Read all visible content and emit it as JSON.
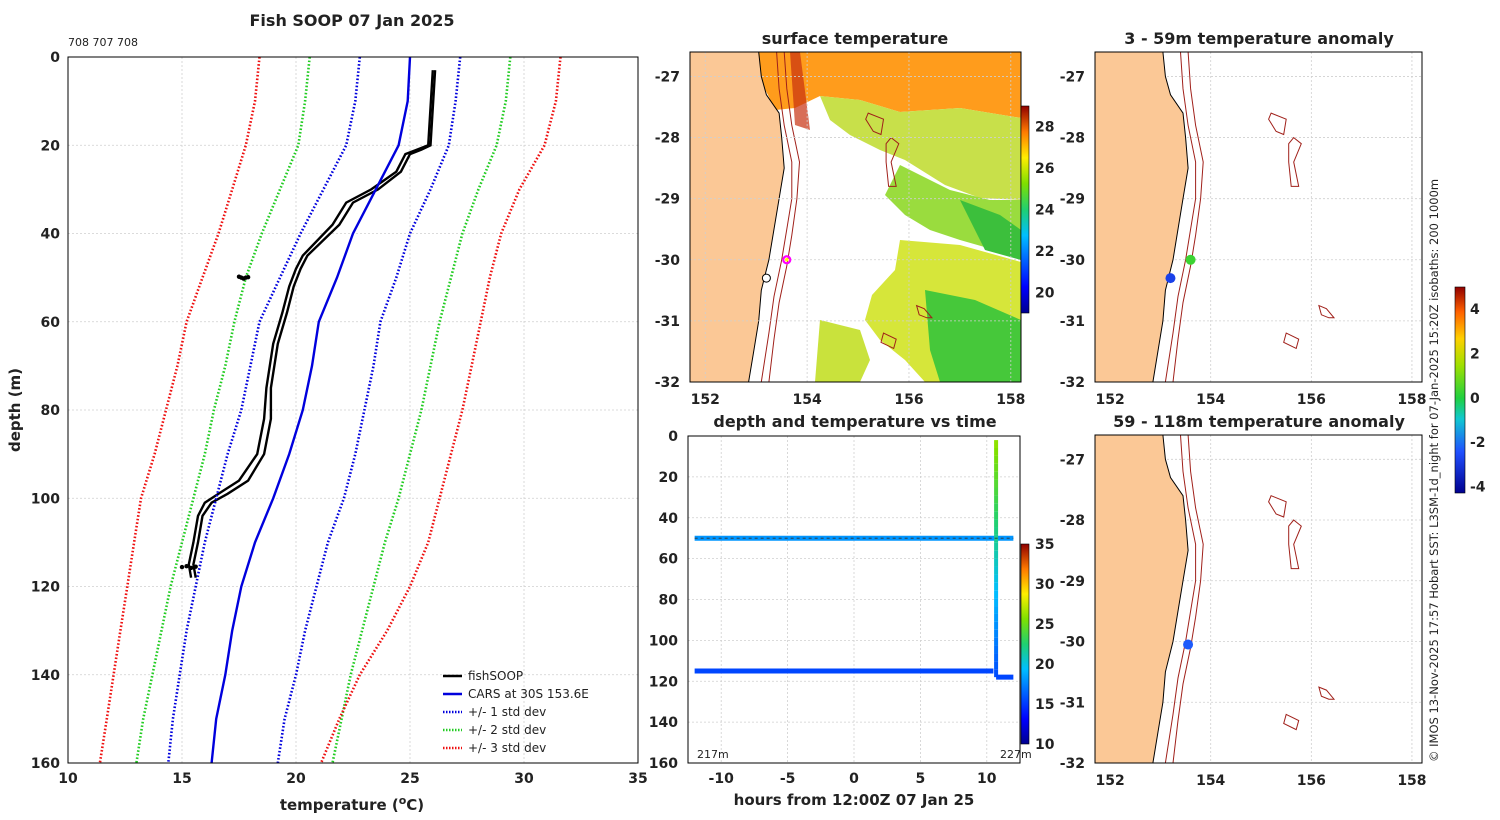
{
  "figure_title": "Fish SOOP 07 Jan 2025",
  "sensor_ids": "708 707 708",
  "side_note": "© IMOS 13-Nov-2025 17:57 Hobart SST: L3SM-1d_night for 07-Jan-2025 15:20Z isobaths: 200  1000m",
  "chart_data": [
    {
      "id": "profile",
      "type": "line",
      "title": "Fish SOOP 07 Jan 2025",
      "xlabel": "temperature (°C)",
      "ylabel": "depth (m)",
      "xlim": [
        10,
        35
      ],
      "ylim": [
        0,
        160
      ],
      "y_reversed": true,
      "grid": true,
      "xticks": [
        10,
        15,
        20,
        25,
        30,
        35
      ],
      "yticks": [
        0,
        20,
        40,
        60,
        80,
        100,
        120,
        140,
        160
      ],
      "legend_position": "bottom-right",
      "legend": [
        "fishSOOP",
        "CARS at 30S 153.6E",
        "+/- 1 std dev",
        "+/- 2 std dev",
        "+/- 3 std dev"
      ],
      "series": [
        {
          "name": "fishSOOP",
          "style": "solid",
          "color": "#000000",
          "depth": [
            3,
            20,
            21,
            22,
            26,
            30,
            33,
            38,
            45,
            48,
            52,
            58,
            65,
            75,
            82,
            90,
            96,
            99,
            101,
            104,
            110,
            115,
            118
          ],
          "temp": [
            26.1,
            25.9,
            25.5,
            25.0,
            24.6,
            23.6,
            22.5,
            21.9,
            20.5,
            20.2,
            19.9,
            19.6,
            19.2,
            18.9,
            18.9,
            18.6,
            17.9,
            17.0,
            16.3,
            15.9,
            15.7,
            15.5,
            15.6
          ]
        },
        {
          "name": "fishSOOP",
          "style": "solid",
          "color": "#000000",
          "depth": [
            3,
            20,
            21,
            22,
            26,
            30,
            33,
            38,
            45,
            48,
            52,
            58,
            65,
            75,
            82,
            90,
            96,
            99,
            101,
            104,
            110,
            115,
            118
          ],
          "temp": [
            26.0,
            25.8,
            25.3,
            24.8,
            24.4,
            23.3,
            22.2,
            21.6,
            20.3,
            20.0,
            19.7,
            19.4,
            19.0,
            18.7,
            18.6,
            18.3,
            17.5,
            16.6,
            16.0,
            15.7,
            15.5,
            15.3,
            15.4
          ]
        },
        {
          "name": "CARS at 30S 153.6E",
          "style": "solid",
          "color": "#0000dd",
          "depth": [
            0,
            10,
            20,
            30,
            40,
            50,
            60,
            70,
            80,
            90,
            100,
            110,
            120,
            130,
            140,
            150,
            160
          ],
          "temp": [
            25.0,
            24.9,
            24.5,
            23.5,
            22.5,
            21.8,
            21.0,
            20.7,
            20.3,
            19.7,
            19.0,
            18.2,
            17.6,
            17.2,
            16.9,
            16.5,
            16.3
          ]
        },
        {
          "name": "+/- 1 std dev",
          "style": "dotted",
          "color": "#0000dd",
          "depth": [
            0,
            10,
            20,
            30,
            40,
            50,
            60,
            70,
            80,
            90,
            100,
            110,
            120,
            130,
            140,
            150,
            160
          ],
          "temp": [
            27.2,
            27.0,
            26.7,
            25.9,
            25.0,
            24.4,
            23.7,
            23.4,
            23.0,
            22.6,
            22.1,
            21.4,
            20.9,
            20.4,
            20.0,
            19.5,
            19.2
          ]
        },
        {
          "name": "+/- 1 std dev",
          "style": "dotted",
          "color": "#0000dd",
          "depth": [
            0,
            10,
            20,
            30,
            40,
            50,
            60,
            70,
            80,
            90,
            100,
            110,
            120,
            130,
            140,
            150,
            160
          ],
          "temp": [
            22.8,
            22.6,
            22.2,
            21.2,
            20.2,
            19.3,
            18.4,
            18.0,
            17.6,
            17.0,
            16.5,
            16.0,
            15.6,
            15.2,
            14.9,
            14.6,
            14.4
          ]
        },
        {
          "name": "+/- 2 std dev",
          "style": "dotted",
          "color": "#22cc22",
          "depth": [
            0,
            10,
            20,
            30,
            40,
            50,
            60,
            70,
            80,
            90,
            100,
            110,
            120,
            130,
            140,
            150,
            160
          ],
          "temp": [
            29.4,
            29.2,
            28.8,
            28.0,
            27.3,
            26.8,
            26.3,
            25.9,
            25.5,
            25.0,
            24.5,
            23.9,
            23.4,
            22.9,
            22.4,
            22.0,
            21.6
          ]
        },
        {
          "name": "+/- 2 std dev",
          "style": "dotted",
          "color": "#22cc22",
          "depth": [
            0,
            10,
            20,
            30,
            40,
            50,
            60,
            70,
            80,
            90,
            100,
            110,
            120,
            130,
            140,
            150,
            160
          ],
          "temp": [
            20.6,
            20.4,
            20.1,
            19.3,
            18.5,
            17.8,
            17.3,
            16.9,
            16.4,
            16.0,
            15.5,
            15.0,
            14.5,
            14.1,
            13.7,
            13.3,
            13.0
          ]
        },
        {
          "name": "+/- 3 std dev",
          "style": "dotted",
          "color": "#ee1111",
          "depth": [
            0,
            10,
            20,
            30,
            40,
            50,
            60,
            70,
            80,
            90,
            100,
            110,
            120,
            130,
            140,
            150,
            160
          ],
          "temp": [
            31.6,
            31.4,
            30.9,
            29.8,
            29.0,
            28.5,
            28.1,
            27.7,
            27.3,
            26.8,
            26.3,
            25.8,
            25.0,
            24.0,
            22.8,
            21.9,
            21.1
          ]
        },
        {
          "name": "+/- 3 std dev",
          "style": "dotted",
          "color": "#ee1111",
          "depth": [
            0,
            10,
            20,
            30,
            40,
            50,
            60,
            70,
            80,
            90,
            100,
            110,
            120,
            130,
            140,
            150,
            160
          ],
          "temp": [
            18.4,
            18.2,
            17.8,
            17.2,
            16.6,
            15.9,
            15.2,
            14.8,
            14.3,
            13.8,
            13.2,
            12.9,
            12.6,
            12.3,
            12.0,
            11.7,
            11.4
          ]
        },
        {
          "name": "fishSOOP",
          "style": "markers",
          "color": "#000000",
          "depth": [
            49.8,
            50.0,
            50.2,
            50.0,
            49.9,
            115.6,
            115.4,
            115.8,
            115.5
          ],
          "temp": [
            17.5,
            17.6,
            17.7,
            17.8,
            17.9,
            15.0,
            15.2,
            15.4,
            15.6
          ]
        }
      ]
    },
    {
      "id": "sst_map",
      "type": "heatmap",
      "title": "surface temperature",
      "xlim": [
        151.7,
        158.2
      ],
      "ylim": [
        -32,
        -26.6
      ],
      "xticks": [
        152,
        154,
        156,
        158
      ],
      "yticks": [
        -27,
        -28,
        -29,
        -30,
        -31,
        -32
      ],
      "colorbar": {
        "min": 19,
        "max": 29,
        "ticks": [
          20,
          22,
          24,
          26,
          28
        ]
      },
      "vessel_position": {
        "lon": 153.6,
        "lat": -30.0
      },
      "profile_position": {
        "lon": 153.2,
        "lat": -30.3
      },
      "grid": true
    },
    {
      "id": "time_series",
      "type": "scatter",
      "title": "depth and temperature vs time",
      "xlabel": "hours from 12:00Z 07 Jan 25",
      "xlim": [
        -12.5,
        12.5
      ],
      "ylim": [
        0,
        160
      ],
      "y_reversed": true,
      "xticks": [
        -10,
        -5,
        0,
        5,
        10
      ],
      "yticks": [
        0,
        20,
        40,
        60,
        80,
        100,
        120,
        140,
        160
      ],
      "colorbar": {
        "min": 10,
        "max": 35,
        "ticks": [
          10,
          15,
          20,
          25,
          30,
          35
        ]
      },
      "annotations": [
        "217m",
        "227m"
      ],
      "series": [
        {
          "name": "tow 50m",
          "hours": [
            -12,
            12
          ],
          "depth": [
            50,
            50
          ],
          "temp": 18
        },
        {
          "name": "tow 115m",
          "hours": [
            -12,
            10.5
          ],
          "depth": [
            115,
            115
          ],
          "temp": 15.4
        },
        {
          "name": "cast",
          "hours": [
            10.7,
            10.7
          ],
          "depth": [
            2,
            118
          ],
          "temp_top": 26,
          "temp_bottom": 15.4
        },
        {
          "name": "tail",
          "hours": [
            10.7,
            12
          ],
          "depth": [
            118,
            118
          ],
          "temp": 15.4
        }
      ]
    },
    {
      "id": "anomaly_shallow",
      "type": "heatmap",
      "title": "3 - 59m temperature anomaly",
      "xlim": [
        151.7,
        158.2
      ],
      "ylim": [
        -32,
        -26.6
      ],
      "xticks": [
        152,
        154,
        156,
        158
      ],
      "yticks": [
        -27,
        -28,
        -29,
        -30,
        -31,
        -32
      ],
      "points": [
        {
          "lon": 153.2,
          "lat": -30.3,
          "anomaly": -2.8
        },
        {
          "lon": 153.6,
          "lat": -30.0,
          "anomaly": 0.3
        }
      ],
      "grid": true
    },
    {
      "id": "anomaly_deep",
      "type": "heatmap",
      "title": "59 - 118m temperature anomaly",
      "xlim": [
        151.7,
        158.2
      ],
      "ylim": [
        -32,
        -26.6
      ],
      "xticks": [
        152,
        154,
        156,
        158
      ],
      "yticks": [
        -27,
        -28,
        -29,
        -30,
        -31,
        -32
      ],
      "points": [
        {
          "lon": 153.55,
          "lat": -30.05,
          "anomaly": -2.3
        }
      ],
      "colorbar": {
        "min": -4.3,
        "max": 5.0,
        "ticks": [
          -4,
          -2,
          0,
          2,
          4
        ]
      },
      "grid": true
    }
  ]
}
